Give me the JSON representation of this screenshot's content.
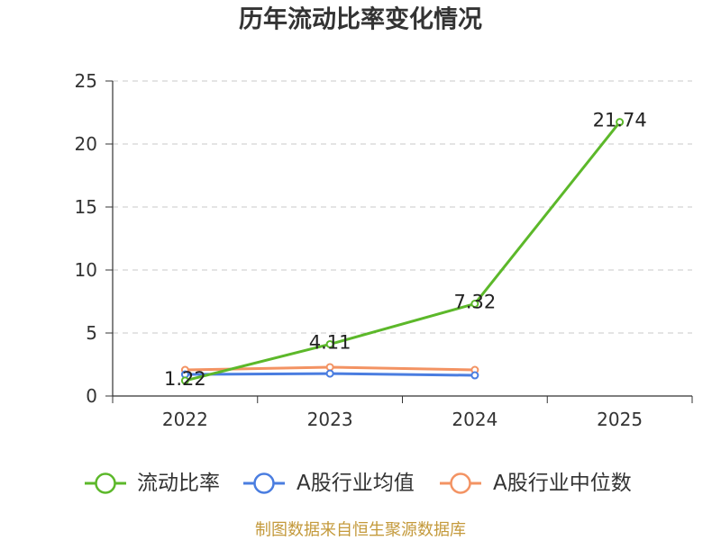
{
  "title": "历年流动比率变化情况",
  "footer": "制图数据来自恒生聚源数据库",
  "footer_color": "#c49a3c",
  "chart_data": {
    "type": "line",
    "title": "历年流动比率变化情况",
    "xlabel": "",
    "ylabel": "",
    "categories": [
      "2022",
      "2023",
      "2024",
      "2025"
    ],
    "ylim": [
      0,
      25
    ],
    "yticks": [
      0,
      5,
      10,
      15,
      20,
      25
    ],
    "ytick_labels": [
      "0",
      "5",
      "10",
      "15",
      "20",
      "25"
    ],
    "grid": true,
    "legend_position": "bottom",
    "series": [
      {
        "name": "流动比率",
        "color": "#5cb82a",
        "values": [
          1.22,
          4.11,
          7.32,
          21.74
        ],
        "labels": [
          "1.22",
          "4.11",
          "7.32",
          "21.74"
        ]
      },
      {
        "name": "A股行业均值",
        "color": "#4a7de0",
        "values": [
          1.71,
          1.78,
          1.64,
          null
        ]
      },
      {
        "name": "A股行业中位数",
        "color": "#f39363",
        "values": [
          2.07,
          2.29,
          2.07,
          null
        ]
      }
    ]
  }
}
